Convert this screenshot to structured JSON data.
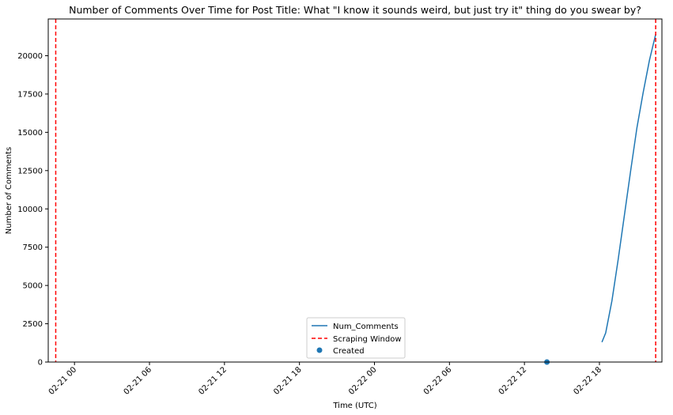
{
  "chart_data": {
    "type": "line",
    "title": "Number of Comments Over Time for Post Title: What \"I know it sounds weird, but just try it\" thing do you swear by?",
    "xlabel": "Time (UTC)",
    "ylabel": "Number of Comments",
    "x_tick_labels": [
      "02-21 00",
      "02-21 06",
      "02-21 12",
      "02-21 18",
      "02-22 00",
      "02-22 06",
      "02-22 12",
      "02-22 18"
    ],
    "x_tick_hours": [
      0,
      6,
      12,
      18,
      24,
      30,
      36,
      42
    ],
    "xlim_hours": [
      -2.1,
      47.0
    ],
    "ylim": [
      0,
      22400
    ],
    "y_ticks": [
      0,
      2500,
      5000,
      7500,
      10000,
      12500,
      15000,
      17500,
      20000
    ],
    "grid": false,
    "legend_position": "lower center",
    "series": [
      {
        "name": "Num_Comments",
        "kind": "line",
        "color": "#1f77b4",
        "x_hours": [
          42.2,
          42.5,
          43.0,
          43.5,
          44.0,
          44.5,
          45.0,
          45.5,
          46.0,
          46.5
        ],
        "y": [
          1300,
          1900,
          4000,
          6700,
          9600,
          12500,
          15300,
          17600,
          19700,
          21400
        ]
      },
      {
        "name": "Scraping Window",
        "kind": "vline",
        "color": "#ff0000",
        "x_hours": [
          -1.5,
          46.5
        ]
      },
      {
        "name": "Created",
        "kind": "scatter",
        "color": "#1f77b4",
        "x_hours": [
          37.8
        ],
        "y": [
          0
        ]
      }
    ]
  }
}
